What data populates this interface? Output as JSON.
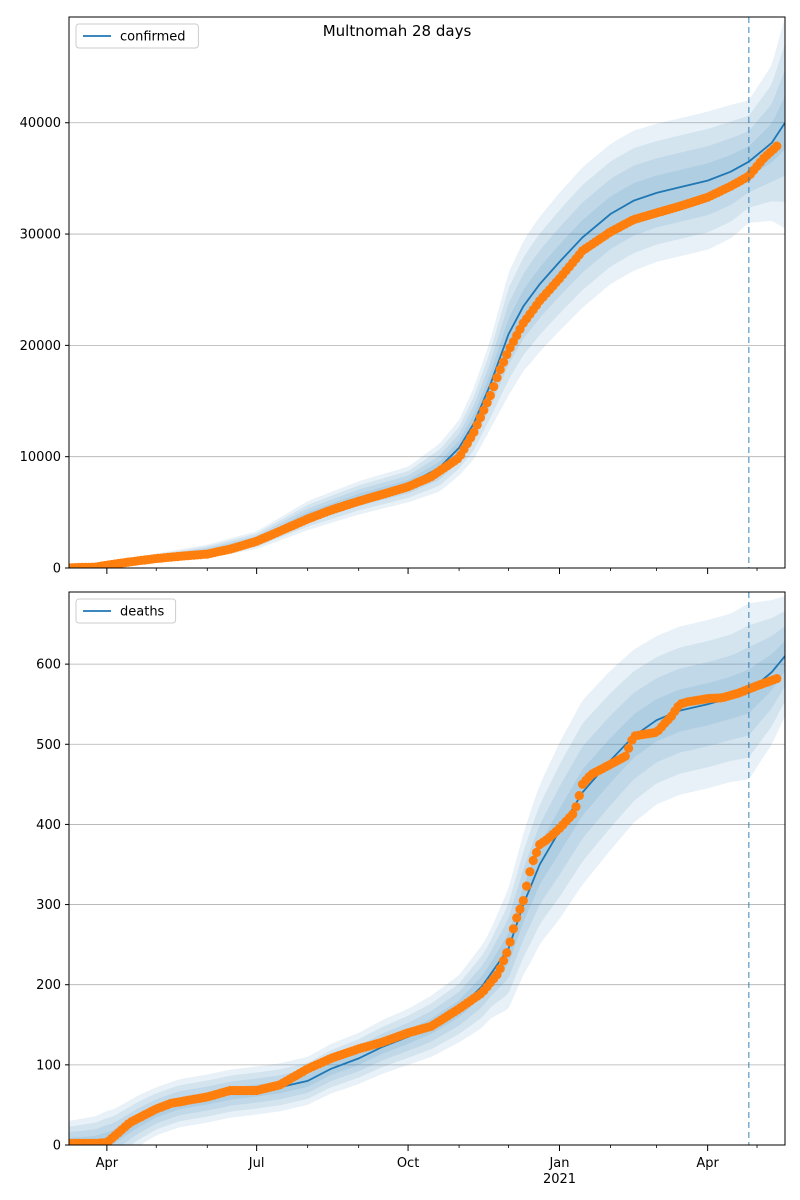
{
  "figure_title": "Multnomah 28 days",
  "colors": {
    "model": "#1f77b4",
    "observed": "#ff7f0e",
    "band": "#1f77b4",
    "grid": "#b0b0b0",
    "vline": "#1f77b4"
  },
  "x_axis": {
    "range": [
      "2020-03-09",
      "2021-05-18"
    ],
    "major_ticks": [
      {
        "date": "2020-04-01",
        "label": "Apr",
        "sublabel": ""
      },
      {
        "date": "2020-07-01",
        "label": "Jul",
        "sublabel": ""
      },
      {
        "date": "2020-10-01",
        "label": "Oct",
        "sublabel": ""
      },
      {
        "date": "2021-01-01",
        "label": "Jan",
        "sublabel": "2021"
      },
      {
        "date": "2021-04-01",
        "label": "Apr",
        "sublabel": ""
      }
    ],
    "minor_ticks": [
      "2020-05-01",
      "2020-06-01",
      "2020-08-01",
      "2020-09-01",
      "2020-11-01",
      "2020-12-01",
      "2021-02-01",
      "2021-03-01",
      "2021-05-01"
    ]
  },
  "chart_data": [
    {
      "type": "line",
      "legend": [
        "confirmed"
      ],
      "legend_position": "top-left",
      "grid": "horizontal",
      "ylim": [
        0,
        49500
      ],
      "yticks": [
        0,
        10000,
        20000,
        30000,
        40000
      ],
      "forecast_start": "2021-04-26",
      "series": [
        {
          "name": "confirmed",
          "kind": "line",
          "x": [
            "2020-03-09",
            "2020-04-01",
            "2020-05-01",
            "2020-06-01",
            "2020-07-01",
            "2020-08-01",
            "2020-09-01",
            "2020-10-01",
            "2020-10-20",
            "2020-11-01",
            "2020-11-10",
            "2020-11-20",
            "2020-12-01",
            "2020-12-10",
            "2020-12-20",
            "2021-01-01",
            "2021-01-15",
            "2021-02-01",
            "2021-02-15",
            "2021-03-01",
            "2021-03-15",
            "2021-04-01",
            "2021-04-15",
            "2021-04-26",
            "2021-05-10",
            "2021-05-18"
          ],
          "y": [
            20,
            300,
            900,
            1500,
            2500,
            4700,
            6300,
            7500,
            9000,
            10800,
            13000,
            16500,
            21000,
            23500,
            25500,
            27500,
            29700,
            31800,
            33000,
            33700,
            34200,
            34800,
            35600,
            36500,
            38200,
            40000
          ]
        },
        {
          "name": "observed",
          "kind": "scatter",
          "x": [
            "2020-03-09",
            "2020-03-25",
            "2020-04-01",
            "2020-04-15",
            "2020-05-01",
            "2020-05-15",
            "2020-06-01",
            "2020-06-15",
            "2020-07-01",
            "2020-07-15",
            "2020-08-01",
            "2020-08-15",
            "2020-09-01",
            "2020-09-15",
            "2020-10-01",
            "2020-10-15",
            "2020-11-01",
            "2020-11-10",
            "2020-11-20",
            "2020-11-25",
            "2020-12-01",
            "2020-12-10",
            "2020-12-20",
            "2021-01-01",
            "2021-01-15",
            "2021-02-01",
            "2021-02-15",
            "2021-03-01",
            "2021-03-15",
            "2021-04-01",
            "2021-04-15",
            "2021-04-26",
            "2021-05-05",
            "2021-05-13"
          ],
          "y": [
            20,
            80,
            250,
            550,
            850,
            1050,
            1250,
            1700,
            2400,
            3300,
            4400,
            5200,
            6000,
            6600,
            7300,
            8200,
            9900,
            12200,
            15500,
            17500,
            19500,
            22000,
            24000,
            26000,
            28500,
            30200,
            31300,
            31900,
            32500,
            33300,
            34300,
            35200,
            36800,
            37900
          ]
        }
      ],
      "band": {
        "x": [
          "2020-03-09",
          "2020-04-01",
          "2020-05-01",
          "2020-06-01",
          "2020-07-01",
          "2020-08-01",
          "2020-09-01",
          "2020-10-01",
          "2020-11-01",
          "2020-11-20",
          "2020-12-01",
          "2020-12-15",
          "2021-01-01",
          "2021-01-15",
          "2021-02-01",
          "2021-02-15",
          "2021-03-01",
          "2021-03-15",
          "2021-04-01",
          "2021-04-15",
          "2021-04-26",
          "2021-05-10",
          "2021-05-18"
        ],
        "outer_half_width": [
          80,
          250,
          400,
          600,
          800,
          1300,
          1500,
          1600,
          2500,
          4000,
          5500,
          6000,
          6200,
          6300,
          6300,
          6300,
          6200,
          6200,
          6200,
          6000,
          5500,
          7000,
          9500
        ],
        "levels": [
          1.0,
          0.75,
          0.5,
          0.25
        ]
      }
    },
    {
      "type": "line",
      "legend": [
        "deaths"
      ],
      "legend_position": "top-left",
      "grid": "horizontal",
      "ylim": [
        0,
        690
      ],
      "yticks": [
        0,
        100,
        200,
        300,
        400,
        500,
        600
      ],
      "forecast_start": "2021-04-26",
      "series": [
        {
          "name": "deaths",
          "kind": "line",
          "x": [
            "2020-03-09",
            "2020-03-25",
            "2020-04-05",
            "2020-04-20",
            "2020-05-01",
            "2020-05-15",
            "2020-06-01",
            "2020-06-15",
            "2020-07-01",
            "2020-07-15",
            "2020-08-01",
            "2020-08-15",
            "2020-09-01",
            "2020-09-15",
            "2020-10-01",
            "2020-10-15",
            "2020-11-01",
            "2020-11-15",
            "2020-12-01",
            "2020-12-10",
            "2020-12-20",
            "2021-01-01",
            "2021-01-15",
            "2021-02-01",
            "2021-02-15",
            "2021-03-01",
            "2021-03-15",
            "2021-04-01",
            "2021-04-15",
            "2021-04-26",
            "2021-05-10",
            "2021-05-18"
          ],
          "y": [
            2,
            3,
            10,
            30,
            42,
            52,
            58,
            64,
            68,
            72,
            80,
            95,
            108,
            122,
            135,
            148,
            170,
            198,
            245,
            300,
            350,
            392,
            440,
            480,
            510,
            530,
            542,
            550,
            558,
            566,
            590,
            610
          ]
        },
        {
          "name": "observed",
          "kind": "scatter",
          "x": [
            "2020-03-09",
            "2020-03-25",
            "2020-04-01",
            "2020-04-05",
            "2020-04-15",
            "2020-05-01",
            "2020-05-10",
            "2020-06-01",
            "2020-06-15",
            "2020-07-01",
            "2020-07-15",
            "2020-08-01",
            "2020-08-15",
            "2020-09-01",
            "2020-09-15",
            "2020-10-01",
            "2020-10-15",
            "2020-11-01",
            "2020-11-15",
            "2020-11-25",
            "2020-12-01",
            "2020-12-05",
            "2020-12-10",
            "2020-12-15",
            "2020-12-20",
            "2020-12-25",
            "2021-01-01",
            "2021-01-10",
            "2021-01-15",
            "2021-01-20",
            "2021-02-01",
            "2021-02-10",
            "2021-02-15",
            "2021-02-20",
            "2021-03-01",
            "2021-03-10",
            "2021-03-15",
            "2021-03-20",
            "2021-04-01",
            "2021-04-10",
            "2021-04-20",
            "2021-05-01",
            "2021-05-13"
          ],
          "y": [
            2,
            2,
            3,
            10,
            28,
            45,
            52,
            60,
            68,
            68,
            75,
            95,
            108,
            120,
            128,
            140,
            148,
            170,
            190,
            215,
            245,
            278,
            305,
            350,
            375,
            382,
            395,
            415,
            450,
            462,
            475,
            485,
            510,
            512,
            515,
            535,
            550,
            553,
            557,
            558,
            564,
            573,
            582
          ]
        }
      ],
      "band": {
        "x": [
          "2020-03-09",
          "2020-04-01",
          "2020-05-01",
          "2020-06-01",
          "2020-07-01",
          "2020-08-01",
          "2020-09-01",
          "2020-10-01",
          "2020-11-01",
          "2020-11-20",
          "2020-12-01",
          "2020-12-15",
          "2021-01-01",
          "2021-01-15",
          "2021-02-01",
          "2021-02-15",
          "2021-03-01",
          "2021-03-15",
          "2021-04-01",
          "2021-04-15",
          "2021-04-26",
          "2021-05-10",
          "2021-05-18"
        ],
        "outer_half_width": [
          28,
          35,
          30,
          30,
          30,
          30,
          32,
          35,
          42,
          55,
          75,
          95,
          110,
          115,
          112,
          108,
          105,
          105,
          105,
          105,
          110,
          90,
          75
        ],
        "levels": [
          1.0,
          0.75,
          0.5,
          0.25
        ]
      }
    }
  ]
}
